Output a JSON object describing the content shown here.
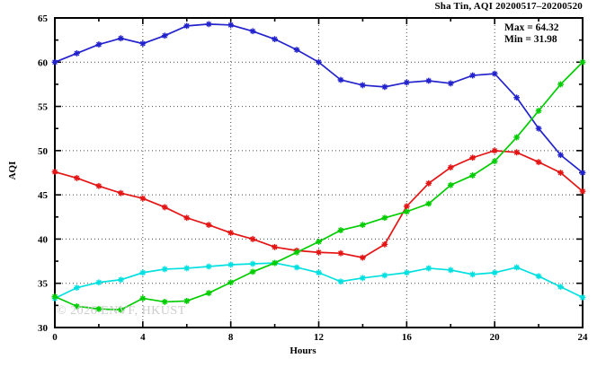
{
  "page": {
    "background": "#ffffff"
  },
  "chart_data": {
    "type": "line",
    "title": "Sha Tin, AQI 20200517–20200520",
    "xlabel": "Hours",
    "ylabel": "AQI",
    "xlim": [
      0,
      24
    ],
    "ylim": [
      30,
      65
    ],
    "x_ticks": [
      0,
      4,
      8,
      12,
      16,
      20,
      24
    ],
    "y_ticks": [
      30,
      35,
      40,
      45,
      50,
      55,
      60,
      65
    ],
    "x_minor_ticks": [
      2,
      6,
      10,
      14,
      18,
      22
    ],
    "y_minor_ticks": [
      32.5,
      37.5,
      42.5,
      47.5,
      52.5,
      57.5,
      62.5
    ],
    "grid": "dotted-at-major-ticks",
    "legend_position": "none",
    "marker": "asterisk",
    "annotations": {
      "max_label": "Max = 64.32",
      "min_label": "Min = 31.98"
    },
    "watermark": "© 2026 ENVF, HKUST",
    "x": [
      0,
      1,
      2,
      3,
      4,
      5,
      6,
      7,
      8,
      9,
      10,
      11,
      12,
      13,
      14,
      15,
      16,
      17,
      18,
      19,
      20,
      21,
      22,
      23,
      24
    ],
    "series": [
      {
        "name": "blue-line",
        "color": "#2323cd",
        "values": [
          60.0,
          61.0,
          62.0,
          62.7,
          62.1,
          63.0,
          64.1,
          64.3,
          64.2,
          63.5,
          62.6,
          61.4,
          60.0,
          58.0,
          57.4,
          57.2,
          57.7,
          57.9,
          57.6,
          58.5,
          58.7,
          56.0,
          52.5,
          49.5,
          47.5
        ]
      },
      {
        "name": "red-line",
        "color": "#e51414",
        "values": [
          47.6,
          46.9,
          46.0,
          45.2,
          44.6,
          43.6,
          42.4,
          41.6,
          40.7,
          40.0,
          39.1,
          38.7,
          38.5,
          38.4,
          37.9,
          39.4,
          43.7,
          46.3,
          48.1,
          49.2,
          50.0,
          49.8,
          48.7,
          47.5,
          45.4
        ]
      },
      {
        "name": "cyan-line",
        "color": "#00e0e0",
        "values": [
          33.3,
          34.5,
          35.1,
          35.4,
          36.2,
          36.6,
          36.7,
          36.9,
          37.1,
          37.2,
          37.3,
          36.8,
          36.2,
          35.2,
          35.6,
          35.9,
          36.2,
          36.7,
          36.5,
          36.0,
          36.2,
          36.8,
          35.8,
          34.6,
          33.4
        ]
      },
      {
        "name": "green-line",
        "color": "#00cd00",
        "values": [
          33.5,
          32.4,
          32.1,
          32.0,
          33.3,
          32.9,
          33.0,
          33.9,
          35.1,
          36.3,
          37.3,
          38.5,
          39.7,
          41.0,
          41.6,
          42.4,
          43.1,
          44.0,
          46.1,
          47.2,
          48.8,
          51.5,
          54.5,
          57.5,
          60.0
        ]
      }
    ]
  }
}
